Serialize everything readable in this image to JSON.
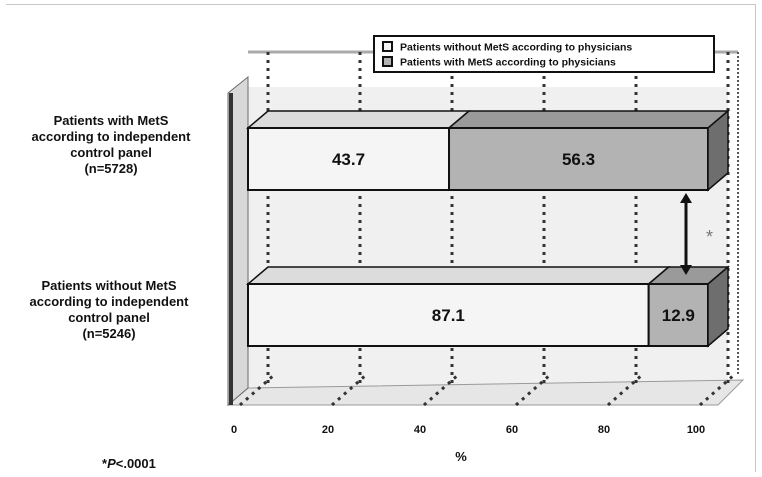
{
  "chart_data": {
    "type": "bar",
    "stacked": true,
    "orientation": "horizontal",
    "style": "3d",
    "categories": [
      [
        "Patients with MetS",
        "according to independent",
        "control panel",
        "(n=5728)"
      ],
      [
        "Patients without MetS",
        "according to independent",
        "control panel",
        "(n=5246)"
      ]
    ],
    "series": [
      {
        "name": "Patients without MetS according to physicians",
        "values": [
          43.7,
          87.1
        ],
        "color": "#f5f5f5"
      },
      {
        "name": "Patients with MetS according to physicians",
        "values": [
          56.3,
          12.9
        ],
        "color": "#b3b3b3"
      }
    ],
    "xlabel": "%",
    "xlim": [
      0,
      100
    ],
    "xticks": [
      0,
      20,
      40,
      60,
      80,
      100
    ],
    "legend_position": "top-right",
    "significance_marker": "*",
    "footnote": {
      "prefix": "*",
      "p_symbol": "P",
      "text": "<.0001"
    }
  }
}
